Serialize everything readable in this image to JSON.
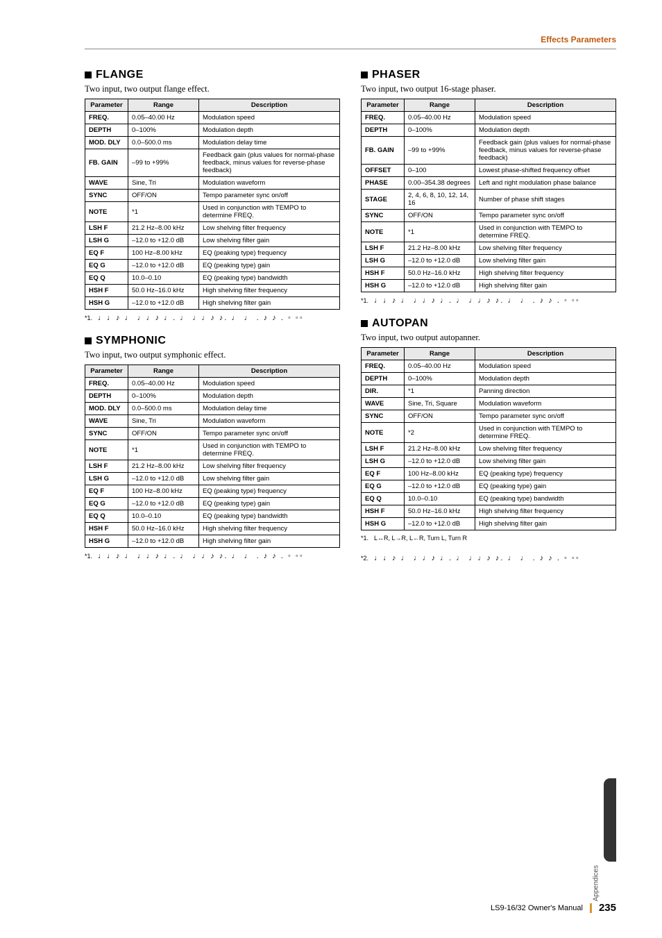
{
  "header": {
    "section": "Effects Parameters",
    "header_color": "#c05a10"
  },
  "footer": {
    "manual": "LS9-16/32  Owner's Manual",
    "page": "235",
    "accent": "#d8962e"
  },
  "sidebar": {
    "label": "Appendices"
  },
  "note_glyphs": "♩♩♪ ♩ ♩♩♪ ♩. ♩ ♩♩♪  ♪. ♩  ♩ . ♪ ♪ . ◦  ◦◦",
  "columns": {
    "c0": "Parameter",
    "c1": "Range",
    "c2": "Description"
  },
  "sections": {
    "flange": {
      "title": "FLANGE",
      "sub": "Two input, two output flange effect.",
      "rows": [
        {
          "p": "FREQ.",
          "r": "0.05–40.00 Hz",
          "d": "Modulation speed"
        },
        {
          "p": "DEPTH",
          "r": "0–100%",
          "d": "Modulation depth"
        },
        {
          "p": "MOD. DLY",
          "r": "0.0–500.0 ms",
          "d": "Modulation delay time"
        },
        {
          "p": "FB. GAIN",
          "r": "–99 to +99%",
          "d": "Feedback gain (plus values for normal-phase feedback, minus values for reverse-phase feedback)"
        },
        {
          "p": "WAVE",
          "r": "Sine, Tri",
          "d": "Modulation waveform"
        },
        {
          "p": "SYNC",
          "r": "OFF/ON",
          "d": "Tempo parameter sync on/off"
        },
        {
          "p": "NOTE",
          "r": "*1",
          "d": "Used in conjunction with TEMPO to determine FREQ."
        },
        {
          "p": "LSH F",
          "r": "21.2 Hz–8.00 kHz",
          "d": "Low shelving filter frequency"
        },
        {
          "p": "LSH G",
          "r": "–12.0 to +12.0 dB",
          "d": "Low shelving filter gain"
        },
        {
          "p": "EQ F",
          "r": "100 Hz–8.00 kHz",
          "d": "EQ (peaking type) frequency"
        },
        {
          "p": "EQ G",
          "r": "–12.0 to +12.0 dB",
          "d": "EQ (peaking type) gain"
        },
        {
          "p": "EQ Q",
          "r": "10.0–0.10",
          "d": "EQ (peaking type) bandwidth"
        },
        {
          "p": "HSH F",
          "r": "50.0 Hz–16.0 kHz",
          "d": "High shelving filter frequency"
        },
        {
          "p": "HSH G",
          "r": "–12.0 to +12.0 dB",
          "d": "High shelving filter gain"
        }
      ],
      "footnotes": [
        {
          "lbl": "*1.",
          "glyph": true
        }
      ]
    },
    "symphonic": {
      "title": "SYMPHONIC",
      "sub": "Two input, two output symphonic effect.",
      "rows": [
        {
          "p": "FREQ.",
          "r": "0.05–40.00 Hz",
          "d": "Modulation speed"
        },
        {
          "p": "DEPTH",
          "r": "0–100%",
          "d": "Modulation depth"
        },
        {
          "p": "MOD. DLY",
          "r": "0.0–500.0 ms",
          "d": "Modulation delay time"
        },
        {
          "p": "WAVE",
          "r": "Sine, Tri",
          "d": "Modulation waveform"
        },
        {
          "p": "SYNC",
          "r": "OFF/ON",
          "d": "Tempo parameter sync on/off"
        },
        {
          "p": "NOTE",
          "r": "*1",
          "d": "Used in conjunction with TEMPO to determine FREQ."
        },
        {
          "p": "LSH F",
          "r": "21.2 Hz–8.00 kHz",
          "d": "Low shelving filter frequency"
        },
        {
          "p": "LSH G",
          "r": "–12.0 to +12.0 dB",
          "d": "Low shelving filter gain"
        },
        {
          "p": "EQ F",
          "r": "100 Hz–8.00 kHz",
          "d": "EQ (peaking type) frequency"
        },
        {
          "p": "EQ G",
          "r": "–12.0 to +12.0 dB",
          "d": "EQ (peaking type) gain"
        },
        {
          "p": "EQ Q",
          "r": "10.0–0.10",
          "d": "EQ (peaking type) bandwidth"
        },
        {
          "p": "HSH F",
          "r": "50.0 Hz–16.0 kHz",
          "d": "High shelving filter frequency"
        },
        {
          "p": "HSH G",
          "r": "–12.0 to +12.0 dB",
          "d": "High shelving filter gain"
        }
      ],
      "footnotes": [
        {
          "lbl": "*1.",
          "glyph": true
        }
      ]
    },
    "phaser": {
      "title": "PHASER",
      "sub": "Two input, two output 16-stage phaser.",
      "rows": [
        {
          "p": "FREQ.",
          "r": "0.05–40.00 Hz",
          "d": "Modulation speed"
        },
        {
          "p": "DEPTH",
          "r": "0–100%",
          "d": "Modulation depth"
        },
        {
          "p": "FB. GAIN",
          "r": "–99 to +99%",
          "d": "Feedback gain (plus values for normal-phase feedback, minus values for reverse-phase feedback)"
        },
        {
          "p": "OFFSET",
          "r": "0–100",
          "d": "Lowest phase-shifted frequency offset"
        },
        {
          "p": "PHASE",
          "r": "0.00–354.38 degrees",
          "d": "Left and right modulation phase balance"
        },
        {
          "p": "STAGE",
          "r": "2, 4, 6, 8, 10, 12, 14, 16",
          "d": "Number of phase shift stages"
        },
        {
          "p": "SYNC",
          "r": "OFF/ON",
          "d": "Tempo parameter sync on/off"
        },
        {
          "p": "NOTE",
          "r": "*1",
          "d": "Used in conjunction with TEMPO to determine FREQ."
        },
        {
          "p": "LSH F",
          "r": "21.2 Hz–8.00 kHz",
          "d": "Low shelving filter frequency"
        },
        {
          "p": "LSH G",
          "r": "–12.0 to +12.0 dB",
          "d": "Low shelving filter gain"
        },
        {
          "p": "HSH F",
          "r": "50.0 Hz–16.0 kHz",
          "d": "High shelving filter frequency"
        },
        {
          "p": "HSH G",
          "r": "–12.0 to +12.0 dB",
          "d": "High shelving filter gain"
        }
      ],
      "footnotes": [
        {
          "lbl": "*1.",
          "glyph": true
        }
      ]
    },
    "autopan": {
      "title": "AUTOPAN",
      "sub": "Two input, two output autopanner.",
      "rows": [
        {
          "p": "FREQ.",
          "r": "0.05–40.00 Hz",
          "d": "Modulation speed"
        },
        {
          "p": "DEPTH",
          "r": "0–100%",
          "d": "Modulation depth"
        },
        {
          "p": "DIR.",
          "r": "*1",
          "d": "Panning direction"
        },
        {
          "p": "WAVE",
          "r": "Sine, Tri, Square",
          "d": "Modulation waveform"
        },
        {
          "p": "SYNC",
          "r": "OFF/ON",
          "d": "Tempo parameter sync on/off"
        },
        {
          "p": "NOTE",
          "r": "*2",
          "d": "Used in conjunction with TEMPO to determine FREQ."
        },
        {
          "p": "LSH F",
          "r": "21.2 Hz–8.00 kHz",
          "d": "Low shelving filter frequency"
        },
        {
          "p": "LSH G",
          "r": "–12.0 to +12.0 dB",
          "d": "Low shelving filter gain"
        },
        {
          "p": "EQ F",
          "r": "100 Hz–8.00 kHz",
          "d": "EQ (peaking type) frequency"
        },
        {
          "p": "EQ G",
          "r": "–12.0 to +12.0 dB",
          "d": "EQ (peaking type) gain"
        },
        {
          "p": "EQ Q",
          "r": "10.0–0.10",
          "d": "EQ (peaking type) bandwidth"
        },
        {
          "p": "HSH F",
          "r": "50.0 Hz–16.0 kHz",
          "d": "High shelving filter frequency"
        },
        {
          "p": "HSH G",
          "r": "–12.0 to +12.0 dB",
          "d": "High shelving filter gain"
        }
      ],
      "footnotes": [
        {
          "lbl": "*1.",
          "text": "L↔R, L→R, L←R, Turn L, Turn R"
        },
        {
          "lbl": "*2.",
          "glyph": true
        }
      ]
    }
  }
}
